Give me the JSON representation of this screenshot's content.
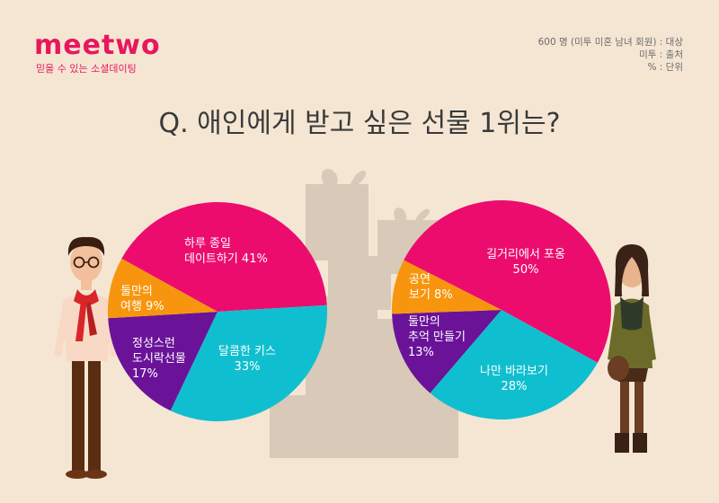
{
  "header": {
    "logo": "meetwo",
    "tagline": "믿을 수 있는 소셜데이팅",
    "meta": [
      "600 명 (미투 미혼 남녀 회원) : 대상",
      "미투 : 출처",
      "% : 단위"
    ]
  },
  "title": "Q. 애인에게 받고 싶은 선물 1위는?",
  "colors": {
    "pink": "#ec0c6e",
    "cyan": "#10bfcf",
    "purple": "#6a1399",
    "orange": "#f7960e"
  },
  "chart_data": [
    {
      "type": "pie",
      "slices": [
        {
          "label": [
            "하루 종일",
            "데이트하기 41%"
          ],
          "value": 41,
          "color": "#ec0c6e"
        },
        {
          "label": [
            "달콤한 키스",
            "33%"
          ],
          "value": 33,
          "color": "#10bfcf"
        },
        {
          "label": [
            "정성스런",
            "도시락선물",
            "17%"
          ],
          "value": 17,
          "color": "#6a1399"
        },
        {
          "label": [
            "둘만의",
            "여행 9%"
          ],
          "value": 9,
          "color": "#f7960e"
        }
      ]
    },
    {
      "type": "pie",
      "slices": [
        {
          "label": [
            "길거리에서 포옹",
            "50%"
          ],
          "value": 50,
          "color": "#ec0c6e"
        },
        {
          "label": [
            "나만 바라보기",
            "28%"
          ],
          "value": 28,
          "color": "#10bfcf"
        },
        {
          "label": [
            "둘만의",
            "추억 만들기",
            "13%"
          ],
          "value": 13,
          "color": "#6a1399"
        },
        {
          "label": [
            "공연",
            "보기 8%"
          ],
          "value": 8,
          "color": "#f7960e"
        }
      ]
    }
  ]
}
